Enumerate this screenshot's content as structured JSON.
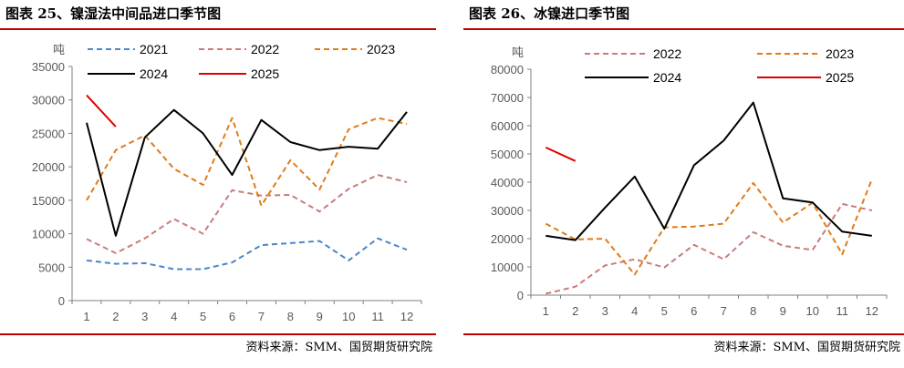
{
  "left": {
    "title": "图表 25、镍湿法中间品进口季节图",
    "source": "资料来源：SMM、国贸期货研究院",
    "chart_data": {
      "type": "line",
      "unit_label": "吨",
      "x": [
        1,
        2,
        3,
        4,
        5,
        6,
        7,
        8,
        9,
        10,
        11,
        12
      ],
      "xticks": [
        "1",
        "2",
        "3",
        "4",
        "5",
        "6",
        "7",
        "8",
        "9",
        "10",
        "11",
        "12"
      ],
      "ylim": [
        0,
        35000
      ],
      "yticks": [
        "0",
        "5000",
        "10000",
        "15000",
        "20000",
        "25000",
        "30000",
        "35000"
      ],
      "grid": false,
      "legend_placement": "top",
      "series": [
        {
          "name": "2021",
          "color": "#4a86c8",
          "dash": "dashed",
          "values": [
            6000,
            5500,
            5600,
            4700,
            4700,
            5700,
            8300,
            8600,
            8900,
            6000,
            9300,
            7600
          ]
        },
        {
          "name": "2022",
          "color": "#c97b7b",
          "dash": "dashed",
          "values": [
            9200,
            7100,
            9300,
            12200,
            10000,
            16500,
            15700,
            15800,
            13300,
            16700,
            18800,
            17700
          ]
        },
        {
          "name": "2023",
          "color": "#e07b1a",
          "dash": "dashed",
          "values": [
            15000,
            22500,
            24700,
            19700,
            17300,
            27300,
            14200,
            21000,
            16600,
            25600,
            27300,
            26400
          ]
        },
        {
          "name": "2024",
          "color": "#000000",
          "dash": "solid",
          "values": [
            26600,
            9700,
            24400,
            28500,
            25000,
            18800,
            27000,
            23700,
            22500,
            23000,
            22700,
            28200
          ]
        },
        {
          "name": "2025",
          "color": "#e00000",
          "dash": "solid",
          "values": [
            30700,
            26000,
            null,
            null,
            null,
            null,
            null,
            null,
            null,
            null,
            null,
            null
          ]
        }
      ]
    }
  },
  "right": {
    "title": "图表 26、冰镍进口季节图",
    "source": "资料来源：SMM、国贸期货研究院",
    "chart_data": {
      "type": "line",
      "unit_label": "吨",
      "x": [
        1,
        2,
        3,
        4,
        5,
        6,
        7,
        8,
        9,
        10,
        11,
        12
      ],
      "xticks": [
        "1",
        "2",
        "3",
        "4",
        "5",
        "6",
        "7",
        "8",
        "9",
        "10",
        "11",
        "12"
      ],
      "ylim": [
        0,
        80000
      ],
      "yticks": [
        "0",
        "10000",
        "20000",
        "30000",
        "40000",
        "50000",
        "60000",
        "70000",
        "80000"
      ],
      "grid": false,
      "legend_placement": "top",
      "series": [
        {
          "name": "2022",
          "color": "#c97b7b",
          "dash": "dashed",
          "values": [
            500,
            3000,
            10500,
            12700,
            9800,
            17800,
            12700,
            22300,
            17500,
            16000,
            32300,
            30000
          ]
        },
        {
          "name": "2023",
          "color": "#e07b1a",
          "dash": "dashed",
          "values": [
            25300,
            19700,
            20000,
            7300,
            24000,
            24300,
            25300,
            39700,
            25700,
            32700,
            14500,
            41000
          ]
        },
        {
          "name": "2024",
          "color": "#000000",
          "dash": "solid",
          "values": [
            21000,
            19500,
            31000,
            42000,
            23500,
            46000,
            54700,
            68200,
            34300,
            32800,
            22500,
            21000
          ]
        },
        {
          "name": "2025",
          "color": "#e00000",
          "dash": "solid",
          "values": [
            52300,
            47500,
            null,
            null,
            null,
            null,
            null,
            null,
            null,
            null,
            null,
            null
          ]
        }
      ]
    }
  }
}
